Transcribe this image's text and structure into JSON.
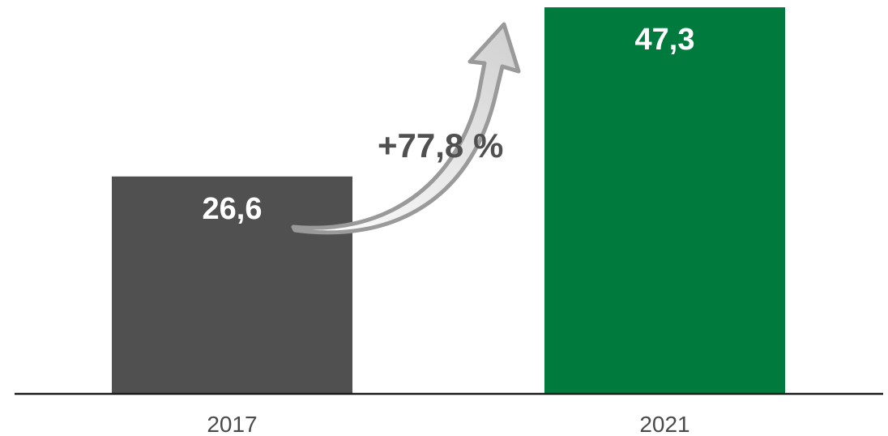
{
  "chart_data": {
    "type": "bar",
    "categories": [
      "2017",
      "2021"
    ],
    "values": [
      26.6,
      47.3
    ],
    "value_labels": [
      "26,6",
      "47,3"
    ],
    "bar_colors": [
      "#505050",
      "#007a3d"
    ],
    "title": "",
    "xlabel": "",
    "ylabel": "",
    "ylim": [
      0,
      47.3
    ],
    "grid": false,
    "legend": "none",
    "annotation": {
      "text": "+77,8 %",
      "type": "curved-arrow",
      "from_category": "2017",
      "to_category": "2021"
    }
  },
  "colors": {
    "axis": "#1a1a1a",
    "tick_text": "#4a4a4a",
    "annotation_text": "#505050",
    "arrow": "#9a9a9a",
    "label_text": "#ffffff"
  }
}
